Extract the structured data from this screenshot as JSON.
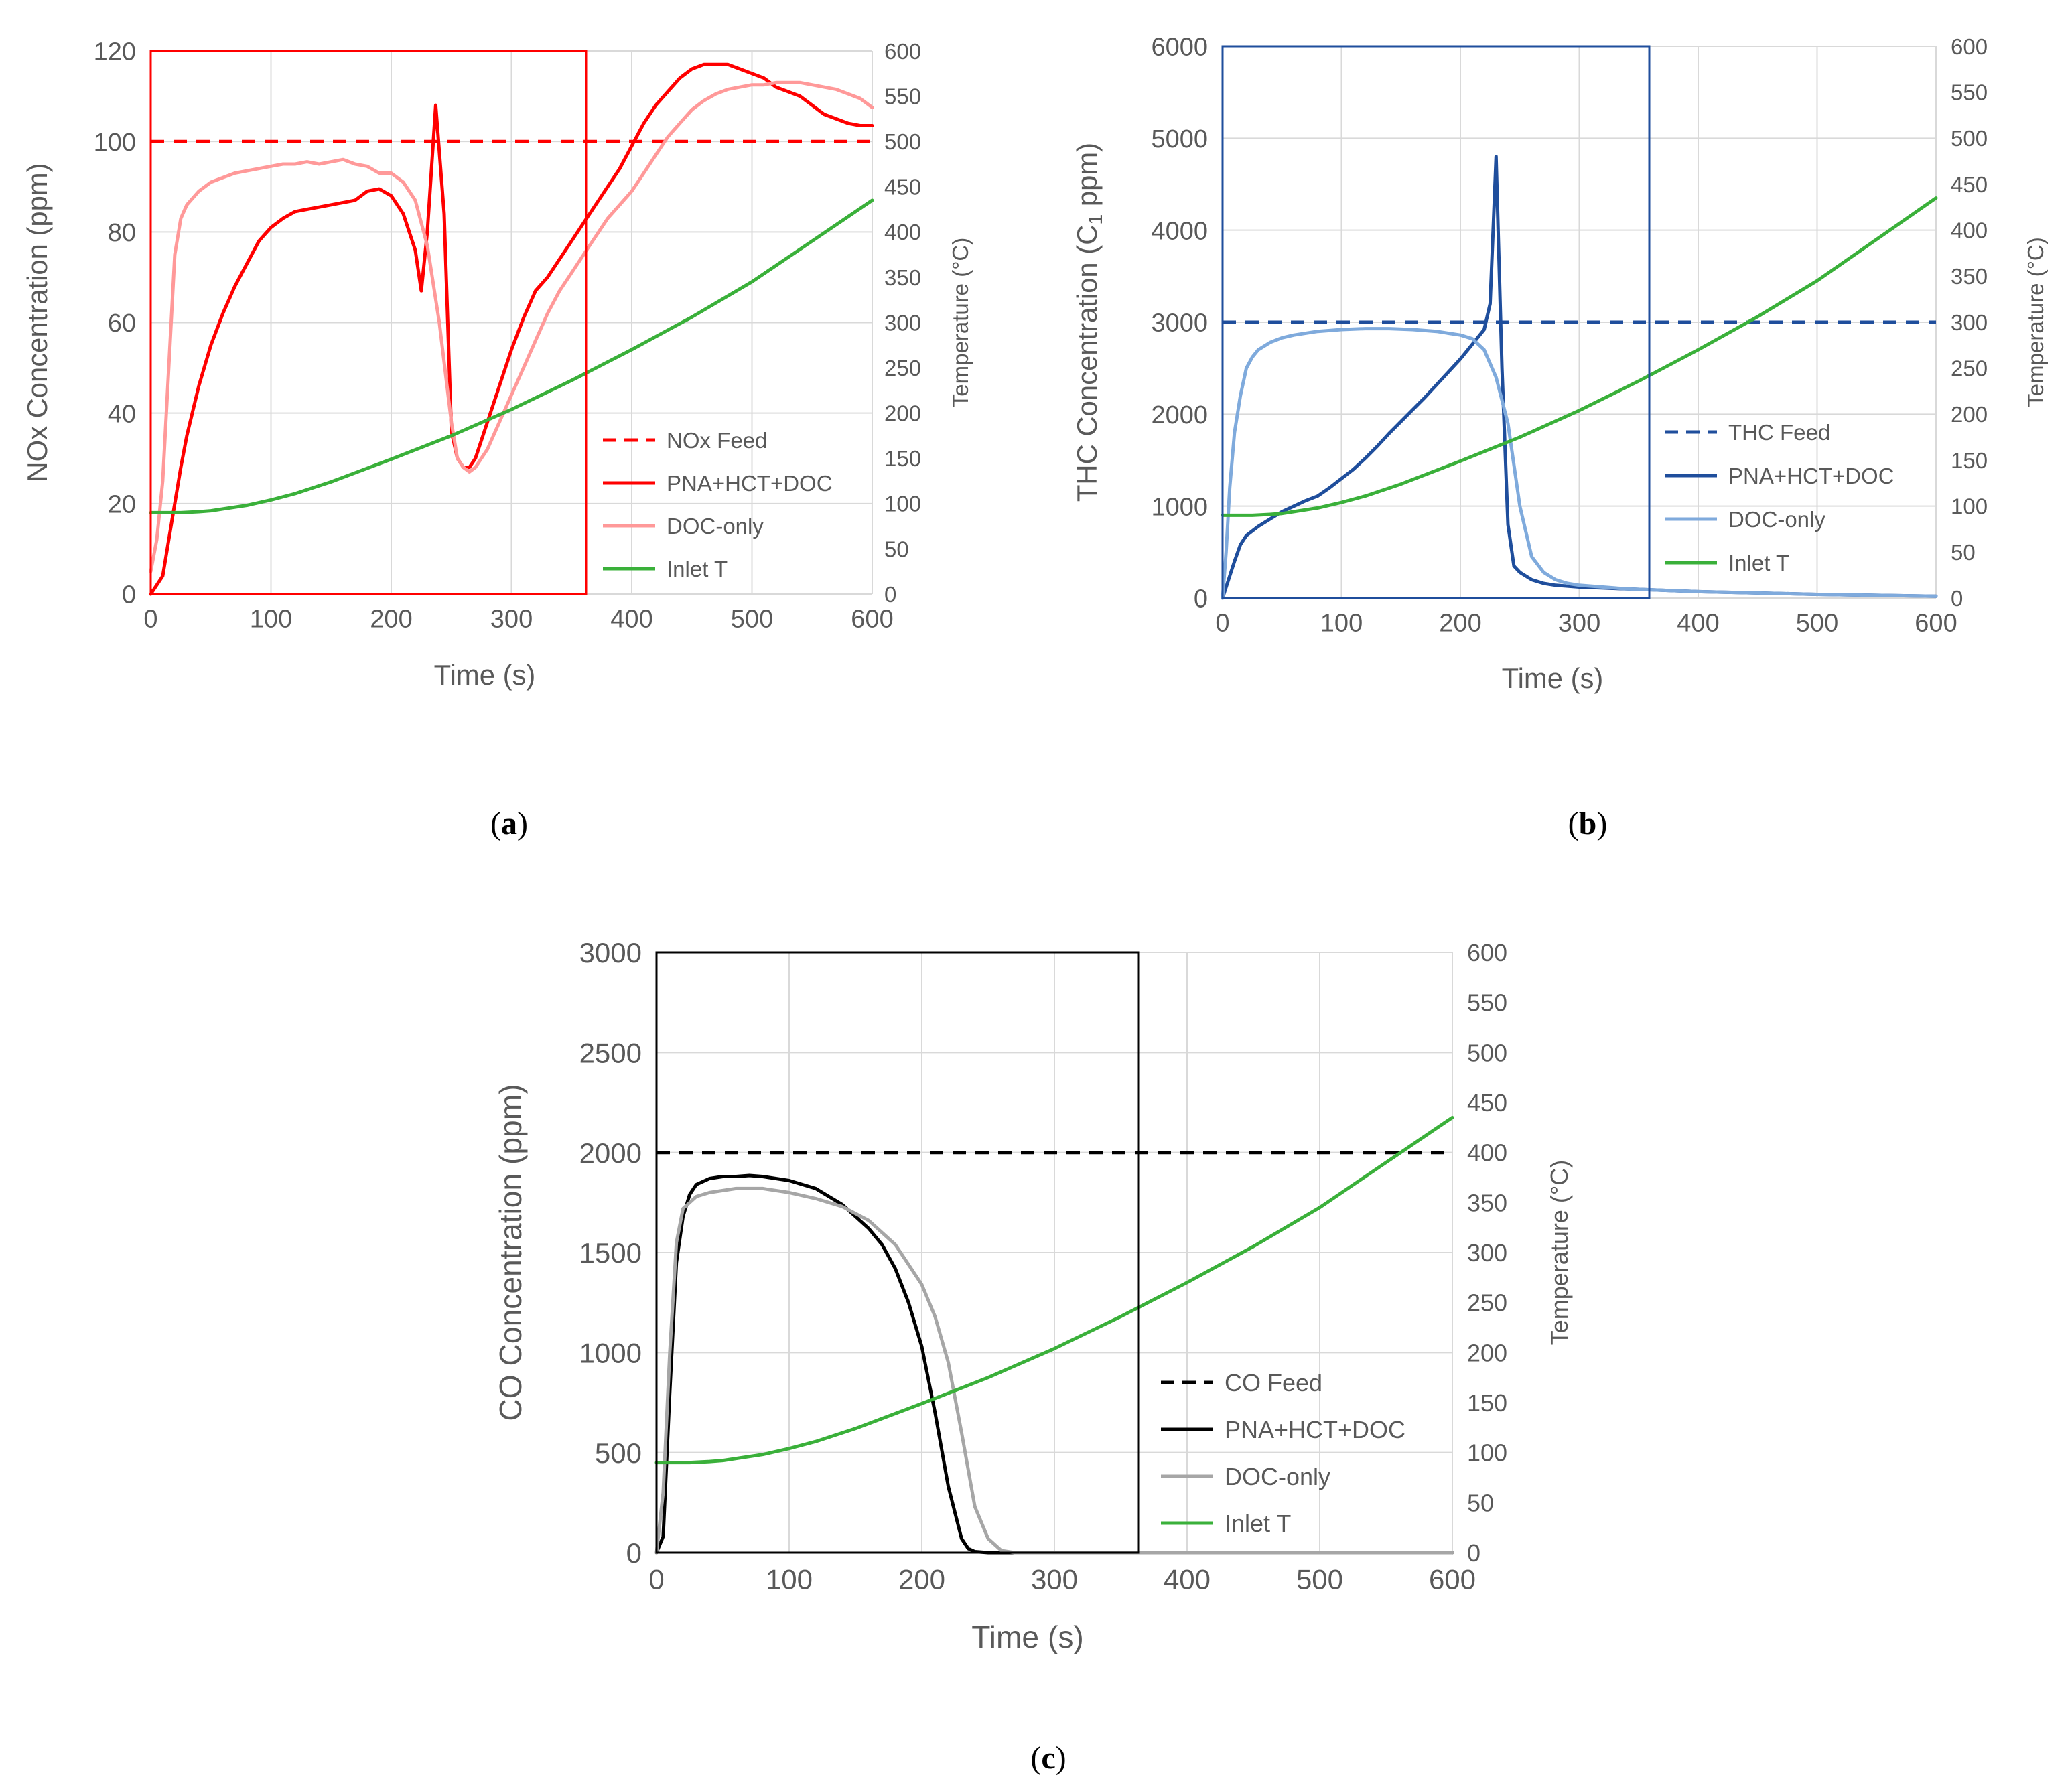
{
  "panels": [
    {
      "id": "a",
      "caption": "a",
      "ylabel": "NOx Concentration (ppm)",
      "y2label": "Temperature (°C)",
      "xlabel": "Time (s)",
      "chart_data": {
        "type": "line",
        "x_range": [
          0,
          600
        ],
        "x_ticks": [
          0,
          100,
          200,
          300,
          400,
          500,
          600
        ],
        "y_range": [
          0,
          120
        ],
        "y_ticks": [
          0,
          20,
          40,
          60,
          80,
          100,
          120
        ],
        "y2_range": [
          0,
          600
        ],
        "y2_ticks": [
          0,
          50,
          100,
          150,
          200,
          250,
          300,
          350,
          400,
          450,
          500,
          550,
          600
        ],
        "highlight_box_x": [
          0,
          365
        ],
        "grid": true,
        "legend_position": "lower-right",
        "series": [
          {
            "name": "NOx Feed",
            "axis": "left",
            "style": "dashed",
            "color": "#ff0000",
            "x": [
              0,
              600
            ],
            "y": [
              100,
              100
            ]
          },
          {
            "name": "PNA+HCT+DOC",
            "axis": "left",
            "style": "solid",
            "color": "#ff0000",
            "x": [
              0,
              5,
              10,
              15,
              20,
              25,
              30,
              40,
              50,
              60,
              70,
              80,
              90,
              100,
              110,
              120,
              130,
              140,
              150,
              160,
              170,
              175,
              180,
              190,
              200,
              210,
              220,
              225,
              230,
              237,
              244,
              250,
              255,
              260,
              265,
              270,
              280,
              290,
              300,
              310,
              320,
              330,
              340,
              350,
              360,
              370,
              380,
              390,
              400,
              410,
              420,
              430,
              440,
              450,
              460,
              470,
              480,
              490,
              500,
              510,
              520,
              530,
              540,
              550,
              560,
              570,
              580,
              590,
              600
            ],
            "y": [
              0,
              2,
              4,
              12,
              20,
              28,
              35,
              46,
              55,
              62,
              68,
              73,
              78,
              81,
              83,
              84.5,
              85,
              85.5,
              86,
              86.5,
              87,
              88,
              89,
              89.5,
              88,
              84,
              76,
              67,
              80,
              108,
              84,
              36,
              30,
              28,
              28,
              30,
              38,
              46,
              54,
              61,
              67,
              70,
              74,
              78,
              82,
              86,
              90,
              94,
              99,
              104,
              108,
              111,
              114,
              116,
              117,
              117,
              117,
              116,
              115,
              114,
              112,
              111,
              110,
              108,
              106,
              105,
              104,
              103.5,
              103.5
            ]
          },
          {
            "name": "DOC-only",
            "axis": "left",
            "style": "solid",
            "color": "#ff9999",
            "x": [
              0,
              5,
              10,
              15,
              20,
              25,
              30,
              40,
              50,
              60,
              70,
              80,
              90,
              100,
              110,
              120,
              130,
              140,
              150,
              160,
              170,
              180,
              190,
              200,
              210,
              220,
              230,
              240,
              250,
              255,
              260,
              265,
              270,
              280,
              290,
              300,
              310,
              320,
              330,
              340,
              350,
              360,
              370,
              380,
              390,
              400,
              410,
              420,
              430,
              440,
              450,
              460,
              470,
              480,
              490,
              500,
              510,
              520,
              530,
              540,
              550,
              560,
              570,
              580,
              590,
              600
            ],
            "y": [
              5,
              12,
              25,
              50,
              75,
              83,
              86,
              89,
              91,
              92,
              93,
              93.5,
              94,
              94.5,
              95,
              95,
              95.5,
              95,
              95.5,
              96,
              95,
              94.5,
              93,
              93,
              91,
              87,
              77,
              60,
              38,
              30,
              28,
              27,
              28,
              32,
              38,
              44,
              50,
              56,
              62,
              67,
              71,
              75,
              79,
              83,
              86,
              89,
              93,
              97,
              101,
              104,
              107,
              109,
              110.5,
              111.5,
              112,
              112.5,
              112.5,
              113,
              113,
              113,
              112.5,
              112,
              111.5,
              110.5,
              109.5,
              107.5
            ]
          },
          {
            "name": "Inlet T",
            "axis": "right",
            "style": "solid",
            "color": "#3ab03a",
            "x": [
              0,
              25,
              40,
              50,
              60,
              80,
              100,
              120,
              150,
              200,
              250,
              300,
              350,
              400,
              450,
              500,
              550,
              600
            ],
            "y": [
              90,
              90,
              91,
              92,
              94,
              98,
              104,
              111,
              124,
              149,
              175,
              204,
              236,
              270,
              306,
              345,
              390,
              435
            ]
          }
        ]
      }
    },
    {
      "id": "b",
      "caption": "b",
      "ylabel": "THC Concentration (C",
      "ylabel_sub": "1",
      "ylabel_tail": " ppm)",
      "y2label": "Temperature (°C)",
      "xlabel": "Time (s)",
      "chart_data": {
        "type": "line",
        "x_range": [
          0,
          600
        ],
        "x_ticks": [
          0,
          100,
          200,
          300,
          400,
          500,
          600
        ],
        "y_range": [
          0,
          6000
        ],
        "y_ticks": [
          0,
          1000,
          2000,
          3000,
          4000,
          5000,
          6000
        ],
        "y2_range": [
          0,
          600
        ],
        "y2_ticks": [
          0,
          50,
          100,
          150,
          200,
          250,
          300,
          350,
          400,
          450,
          500,
          550,
          600
        ],
        "highlight_box_x": [
          0,
          362
        ],
        "grid": true,
        "legend_position": "lower-right",
        "series": [
          {
            "name": "THC Feed",
            "axis": "left",
            "style": "dashed",
            "color": "#1f4e9c",
            "x": [
              0,
              600
            ],
            "y": [
              3000,
              3000
            ]
          },
          {
            "name": "PNA+HCT+DOC",
            "axis": "left",
            "style": "solid",
            "color": "#1f4e9c",
            "x": [
              0,
              5,
              10,
              15,
              20,
              30,
              40,
              50,
              60,
              70,
              80,
              90,
              100,
              110,
              120,
              130,
              140,
              150,
              160,
              170,
              180,
              190,
              200,
              210,
              220,
              225,
              230,
              235,
              240,
              245,
              250,
              260,
              270,
              280,
              290,
              300,
              320,
              340,
              360,
              380,
              400,
              450,
              500,
              550,
              600
            ],
            "y": [
              0,
              200,
              400,
              580,
              680,
              780,
              860,
              940,
              1000,
              1060,
              1110,
              1200,
              1300,
              1400,
              1520,
              1650,
              1790,
              1920,
              2050,
              2180,
              2320,
              2460,
              2600,
              2760,
              2920,
              3200,
              4800,
              2500,
              800,
              350,
              280,
              200,
              160,
              140,
              130,
              120,
              110,
              100,
              90,
              80,
              70,
              55,
              40,
              30,
              20
            ]
          },
          {
            "name": "DOC-only",
            "axis": "left",
            "style": "solid",
            "color": "#7faadc",
            "x": [
              0,
              3,
              6,
              10,
              15,
              20,
              25,
              30,
              40,
              50,
              60,
              80,
              100,
              120,
              140,
              160,
              180,
              190,
              200,
              210,
              220,
              230,
              240,
              250,
              260,
              270,
              280,
              290,
              300,
              320,
              340,
              360,
              400,
              450,
              500,
              550,
              600
            ],
            "y": [
              0,
              500,
              1200,
              1800,
              2200,
              2500,
              2620,
              2700,
              2780,
              2830,
              2860,
              2900,
              2920,
              2930,
              2930,
              2920,
              2900,
              2880,
              2860,
              2820,
              2700,
              2400,
              1900,
              1000,
              450,
              280,
              200,
              160,
              140,
              120,
              100,
              90,
              70,
              55,
              40,
              30,
              20
            ]
          },
          {
            "name": "Inlet T",
            "axis": "right",
            "style": "solid",
            "color": "#3ab03a",
            "x": [
              0,
              25,
              40,
              50,
              60,
              80,
              100,
              120,
              150,
              200,
              250,
              300,
              350,
              400,
              450,
              500,
              550,
              600
            ],
            "y": [
              90,
              90,
              91,
              92,
              94,
              98,
              104,
              111,
              124,
              149,
              175,
              204,
              236,
              270,
              306,
              345,
              390,
              435
            ]
          }
        ]
      }
    },
    {
      "id": "c",
      "caption": "c",
      "ylabel": "CO Concentration (ppm)",
      "y2label": "Temperature (°C)",
      "xlabel": "Time (s)",
      "chart_data": {
        "type": "line",
        "x_range": [
          0,
          600
        ],
        "x_ticks": [
          0,
          100,
          200,
          300,
          400,
          500,
          600
        ],
        "y_range": [
          0,
          3000
        ],
        "y_ticks": [
          0,
          500,
          1000,
          1500,
          2000,
          2500,
          3000
        ],
        "y2_range": [
          0,
          600
        ],
        "y2_ticks": [
          0,
          50,
          100,
          150,
          200,
          250,
          300,
          350,
          400,
          450,
          500,
          550,
          600
        ],
        "highlight_box_x": [
          0,
          362
        ],
        "grid": true,
        "legend_position": "lower-right",
        "series": [
          {
            "name": "CO Feed",
            "axis": "left",
            "style": "dashed",
            "color": "#000000",
            "x": [
              0,
              600
            ],
            "y": [
              2000,
              2000
            ]
          },
          {
            "name": "PNA+HCT+DOC",
            "axis": "left",
            "style": "solid",
            "color": "#000000",
            "x": [
              0,
              5,
              10,
              15,
              20,
              25,
              30,
              40,
              50,
              60,
              70,
              80,
              100,
              120,
              140,
              160,
              170,
              180,
              190,
              200,
              210,
              220,
              230,
              235,
              240,
              250,
              260,
              300,
              400,
              500,
              600
            ],
            "y": [
              0,
              80,
              800,
              1450,
              1680,
              1790,
              1840,
              1870,
              1880,
              1880,
              1885,
              1880,
              1860,
              1820,
              1740,
              1620,
              1540,
              1420,
              1250,
              1030,
              700,
              330,
              70,
              20,
              5,
              0,
              0,
              0,
              0,
              0,
              0
            ]
          },
          {
            "name": "DOC-only",
            "axis": "left",
            "style": "solid",
            "color": "#a6a6a6",
            "x": [
              0,
              5,
              10,
              15,
              20,
              30,
              40,
              50,
              60,
              70,
              80,
              100,
              120,
              140,
              160,
              180,
              190,
              200,
              210,
              220,
              230,
              240,
              250,
              260,
              270,
              300,
              400,
              500,
              600
            ],
            "y": [
              0,
              300,
              1000,
              1550,
              1720,
              1780,
              1800,
              1810,
              1820,
              1820,
              1820,
              1800,
              1770,
              1730,
              1660,
              1540,
              1440,
              1340,
              1180,
              950,
              600,
              230,
              70,
              10,
              0,
              0,
              0,
              0,
              0
            ]
          },
          {
            "name": "Inlet T",
            "axis": "right",
            "style": "solid",
            "color": "#3ab03a",
            "x": [
              0,
              25,
              40,
              50,
              60,
              80,
              100,
              120,
              150,
              200,
              250,
              300,
              350,
              400,
              450,
              500,
              550,
              600
            ],
            "y": [
              90,
              90,
              91,
              92,
              94,
              98,
              104,
              111,
              124,
              149,
              175,
              204,
              236,
              270,
              306,
              345,
              390,
              435
            ]
          }
        ]
      }
    }
  ]
}
